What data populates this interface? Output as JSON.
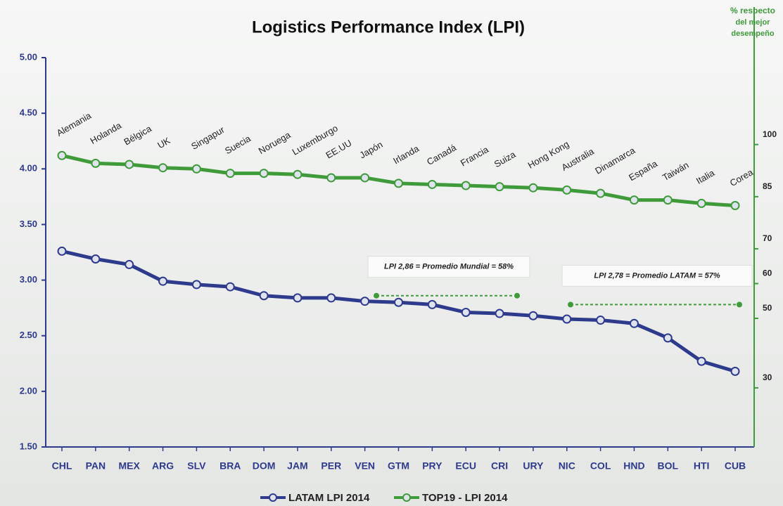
{
  "chart_data": {
    "type": "line",
    "title": "Logistics Performance Index (LPI)",
    "y2label": [
      "% respecto",
      "del mejor",
      "desempeño"
    ],
    "categories": [
      "CHL",
      "PAN",
      "MEX",
      "ARG",
      "SLV",
      "BRA",
      "DOM",
      "JAM",
      "PER",
      "VEN",
      "GTM",
      "PRY",
      "ECU",
      "CRI",
      "URY",
      "NIC",
      "COL",
      "HND",
      "BOL",
      "HTI",
      "CUB"
    ],
    "series": [
      {
        "name": "LATAM LPI 2014",
        "color": "#2e3a8c",
        "values": [
          3.26,
          3.19,
          3.14,
          2.99,
          2.96,
          2.94,
          2.86,
          2.84,
          2.84,
          2.81,
          2.8,
          2.78,
          2.71,
          2.7,
          2.68,
          2.65,
          2.64,
          2.61,
          2.48,
          2.27,
          2.18
        ]
      },
      {
        "name": "TOP19 - LPI 2014",
        "color": "#3f9a3a",
        "labels": [
          "Alemania",
          "Holanda",
          "Bélgica",
          "UK",
          "Singapur",
          "Suecia",
          "Noruega",
          "Luxemburgo",
          "EE.UU",
          "Japón",
          "Irlanda",
          "Canadá",
          "Francia",
          "Suiza",
          "Hong Kong",
          "Australia",
          "Dinamarca",
          "España",
          "Taiwán",
          "Italia",
          "Corea"
        ],
        "values": [
          4.12,
          4.05,
          4.04,
          4.01,
          4.0,
          3.96,
          3.96,
          3.95,
          3.92,
          3.92,
          3.87,
          3.86,
          3.85,
          3.84,
          3.83,
          3.81,
          3.78,
          3.72,
          3.72,
          3.69,
          3.67
        ]
      }
    ],
    "ylim": [
      1.5,
      5.0
    ],
    "yticks": [
      {
        "value": 1.5,
        "label": "1.50"
      },
      {
        "value": 2.0,
        "label": "2.00"
      },
      {
        "value": 2.5,
        "label": "2.50"
      },
      {
        "value": 3.0,
        "label": "3.00"
      },
      {
        "value": 3.5,
        "label": "3.50"
      },
      {
        "value": 4.0,
        "label": "4.00"
      },
      {
        "value": 4.5,
        "label": "4.50"
      },
      {
        "value": 5.0,
        "label": "5.00"
      }
    ],
    "y2lim": [
      13,
      125
    ],
    "y2ticks": [
      30,
      50,
      60,
      70,
      85,
      100
    ],
    "annotations": [
      {
        "text": "LPI  2,86 = Promedio Mundial = 58%",
        "value": 2.86
      },
      {
        "text": "LPI  2,78 = Promedio LATAM = 57%",
        "value": 2.78
      }
    ],
    "legend": "bottom"
  }
}
